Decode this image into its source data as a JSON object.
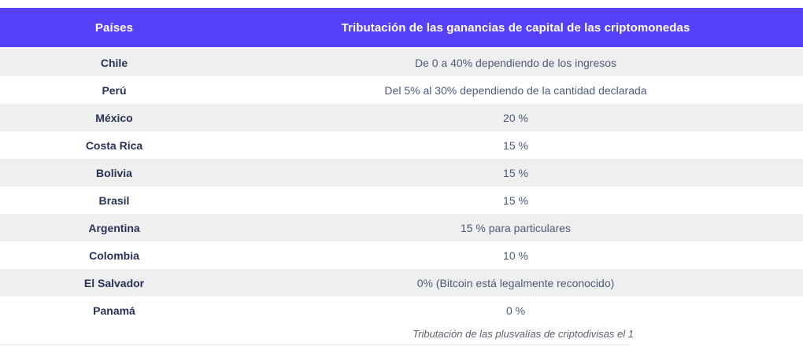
{
  "colors": {
    "header_bg": "#5640F8",
    "header_text": "#FFFFFF",
    "row_alt_bg": "#EFEFF0",
    "row_bg": "#FFFFFF",
    "country_text": "#283158",
    "value_text": "#4E5A78",
    "caption_text": "#5C6370"
  },
  "table": {
    "headers": [
      "Países",
      "Tributación de las ganancias de capital de las criptomonedas"
    ],
    "rows": [
      {
        "country": "Chile",
        "tax": "De 0 a 40% dependiendo de los ingresos"
      },
      {
        "country": "Perú",
        "tax": "Del 5% al 30% dependiendo de la cantidad declarada"
      },
      {
        "country": "México",
        "tax": "20 %"
      },
      {
        "country": "Costa Rica",
        "tax": "15 %"
      },
      {
        "country": "Bolivia",
        "tax": "15 %"
      },
      {
        "country": "Brasil",
        "tax": "15 %"
      },
      {
        "country": "Argentina",
        "tax": "15 % para particulares"
      },
      {
        "country": "Colombia",
        "tax": "10 %"
      },
      {
        "country": "El Salvador",
        "tax": "0% (Bitcoin está legalmente reconocido)"
      },
      {
        "country": "Panamá",
        "tax": "0 %"
      }
    ]
  },
  "caption": "Tributación de las plusvalías de criptodivisas el 1"
}
